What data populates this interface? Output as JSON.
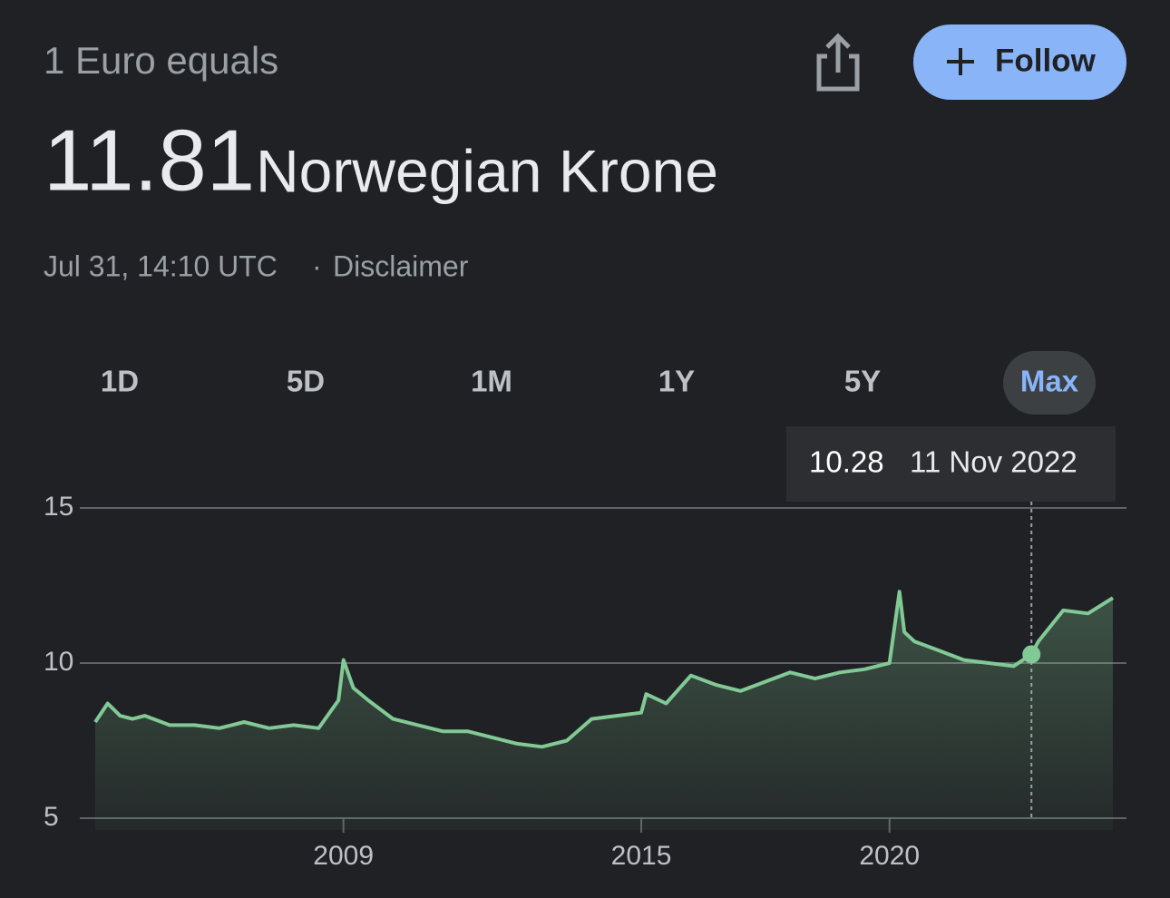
{
  "header": {
    "label": "1 Euro equals",
    "amount": "11.81",
    "currency": "Norwegian Krone",
    "timestamp": "Jul 31, 14:10 UTC",
    "separator": "·",
    "disclaimer": "Disclaimer"
  },
  "follow_button": "Follow",
  "ranges": [
    "1D",
    "5D",
    "1M",
    "1Y",
    "5Y",
    "Max"
  ],
  "selected_range": "Max",
  "chart_data": {
    "type": "area",
    "color": "#81c995",
    "x": [
      2004.0,
      2004.25,
      2004.5,
      2004.75,
      2005.0,
      2005.5,
      2006.0,
      2006.5,
      2007.0,
      2007.5,
      2008.0,
      2008.5,
      2008.9,
      2009.0,
      2009.2,
      2009.5,
      2009.75,
      2010.0,
      2010.5,
      2011.0,
      2011.5,
      2012.0,
      2012.5,
      2013.0,
      2013.5,
      2014.0,
      2014.5,
      2015.0,
      2015.1,
      2015.5,
      2016.0,
      2016.5,
      2017.0,
      2017.5,
      2018.0,
      2018.5,
      2019.0,
      2019.5,
      2020.0,
      2020.2,
      2020.3,
      2020.5,
      2021.0,
      2021.5,
      2022.0,
      2022.5,
      2022.86,
      2023.0,
      2023.5,
      2024.0,
      2024.5
    ],
    "values": [
      8.1,
      8.7,
      8.3,
      8.2,
      8.3,
      8.0,
      8.0,
      7.9,
      8.1,
      7.9,
      8.0,
      7.9,
      8.8,
      10.1,
      9.2,
      8.8,
      8.5,
      8.2,
      8.0,
      7.8,
      7.8,
      7.6,
      7.4,
      7.3,
      7.5,
      8.2,
      8.3,
      8.4,
      9.0,
      8.7,
      9.6,
      9.3,
      9.1,
      9.4,
      9.7,
      9.5,
      9.7,
      9.8,
      10.0,
      12.3,
      11.0,
      10.7,
      10.4,
      10.1,
      10.0,
      9.9,
      10.28,
      10.7,
      11.7,
      11.6,
      12.1
    ],
    "xlim": [
      2004,
      2024.5
    ],
    "xticks": [
      2009,
      2015,
      2020
    ],
    "ylim": [
      5,
      15
    ],
    "yticks": [
      5,
      10,
      15
    ],
    "grid": true,
    "tooltip": {
      "value": 10.28,
      "date": "11 Nov 2022"
    }
  }
}
